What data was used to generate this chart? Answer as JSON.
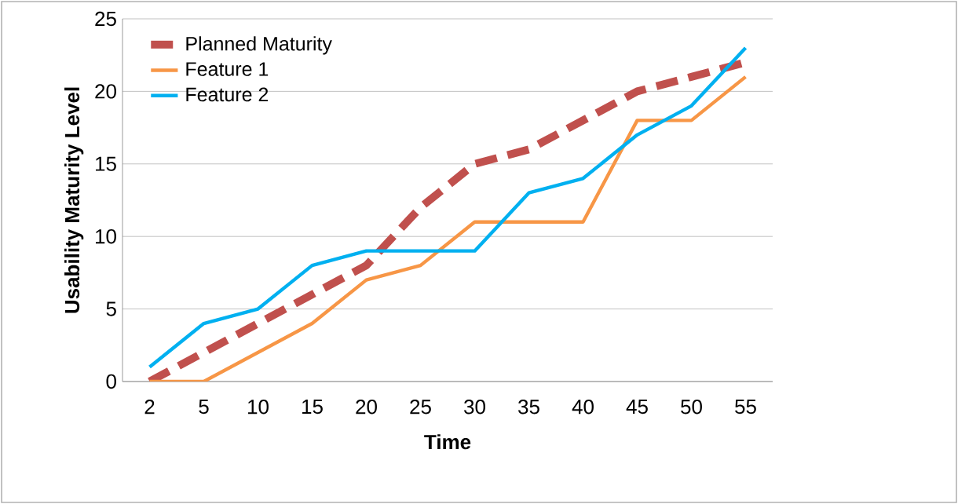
{
  "chart_data": {
    "type": "line",
    "xlabel": "Time",
    "ylabel": "Usability Maturity Level",
    "categories": [
      "2",
      "5",
      "10",
      "15",
      "20",
      "25",
      "30",
      "35",
      "40",
      "45",
      "50",
      "55"
    ],
    "series": [
      {
        "name": "Planned Maturity",
        "color": "#c0504d",
        "line_style": "dashed",
        "values": [
          0,
          2,
          4,
          6,
          8,
          12,
          15,
          16,
          18,
          20,
          21,
          22
        ]
      },
      {
        "name": "Feature 1",
        "color": "#f79646",
        "values": [
          0,
          0,
          2,
          4,
          7,
          8,
          11,
          11,
          11,
          18,
          18,
          21
        ]
      },
      {
        "name": "Feature 2",
        "color": "#00b0f0",
        "values": [
          1,
          4,
          5,
          8,
          9,
          9,
          9,
          13,
          14,
          17,
          19,
          23
        ]
      }
    ],
    "ylim": [
      0,
      25
    ],
    "yticks": [
      0,
      5,
      10,
      15,
      20,
      25
    ],
    "grid": "y",
    "legend": "top left",
    "marker": "none"
  }
}
